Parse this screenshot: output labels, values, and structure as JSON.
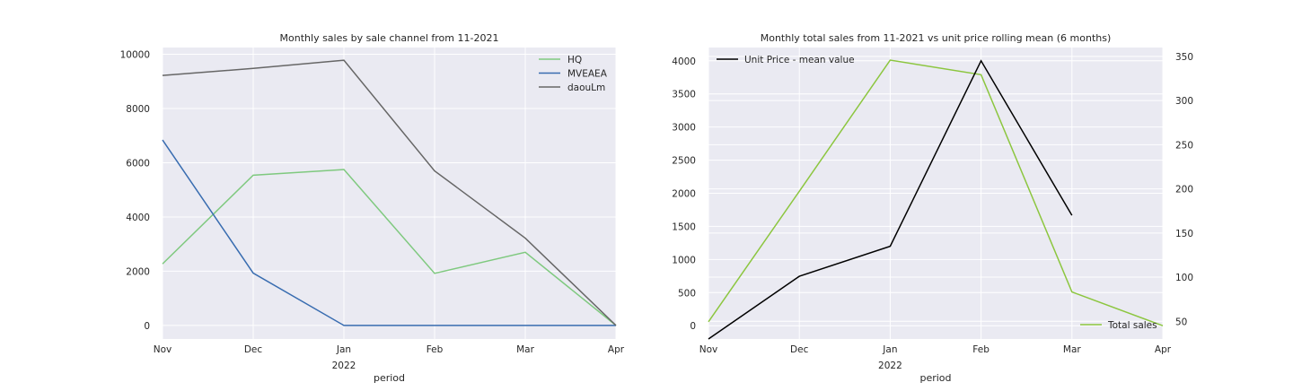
{
  "chart_data": [
    {
      "type": "line",
      "title": "Monthly sales by sale channel from 11-2021",
      "xlabel": "period",
      "ylabel": "",
      "categories": [
        "Nov",
        "Dec",
        "Jan",
        "Feb",
        "Mar",
        "Apr"
      ],
      "x_sublabels": [
        "",
        "",
        "2022",
        "",
        "",
        ""
      ],
      "ylim": [
        -500,
        10250
      ],
      "yticks": [
        0,
        2000,
        4000,
        6000,
        8000,
        10000
      ],
      "grid": true,
      "legend_position": "top-right",
      "series": [
        {
          "name": "HQ",
          "color": "#7fc97f",
          "values": [
            2270,
            5540,
            5750,
            1920,
            2700,
            0
          ]
        },
        {
          "name": "MVEAEA",
          "color": "#386cb0",
          "values": [
            6840,
            1930,
            0,
            0,
            0,
            0
          ]
        },
        {
          "name": "daouLm",
          "color": "#666666",
          "values": [
            9220,
            9480,
            9780,
            5700,
            3220,
            0
          ]
        }
      ]
    },
    {
      "type": "line",
      "title": "Monthly total sales from 11-2021 vs unit price rolling mean (6 months)",
      "xlabel": "period",
      "categories": [
        "Nov",
        "Dec",
        "Jan",
        "Feb",
        "Mar",
        "Apr"
      ],
      "x_sublabels": [
        "",
        "",
        "2022",
        "",
        "",
        ""
      ],
      "grid": true,
      "left_axis": {
        "ylim": [
          -200,
          4200
        ],
        "yticks": [
          0,
          500,
          1000,
          1500,
          2000,
          2500,
          3000,
          3500,
          4000
        ]
      },
      "right_axis": {
        "ylim": [
          30,
          360
        ],
        "yticks": [
          50,
          100,
          150,
          200,
          250,
          300,
          350
        ]
      },
      "series": [
        {
          "name": "Total sales",
          "axis": "left",
          "color": "#8cc63f",
          "legend_position": "bottom-right",
          "values": [
            60,
            2030,
            4010,
            3790,
            510,
            0
          ]
        },
        {
          "name": "Unit Price - mean value",
          "axis": "right",
          "color": "#000000",
          "legend_position": "top-left",
          "values": [
            30,
            101,
            135,
            345,
            170,
            null
          ]
        }
      ]
    }
  ]
}
